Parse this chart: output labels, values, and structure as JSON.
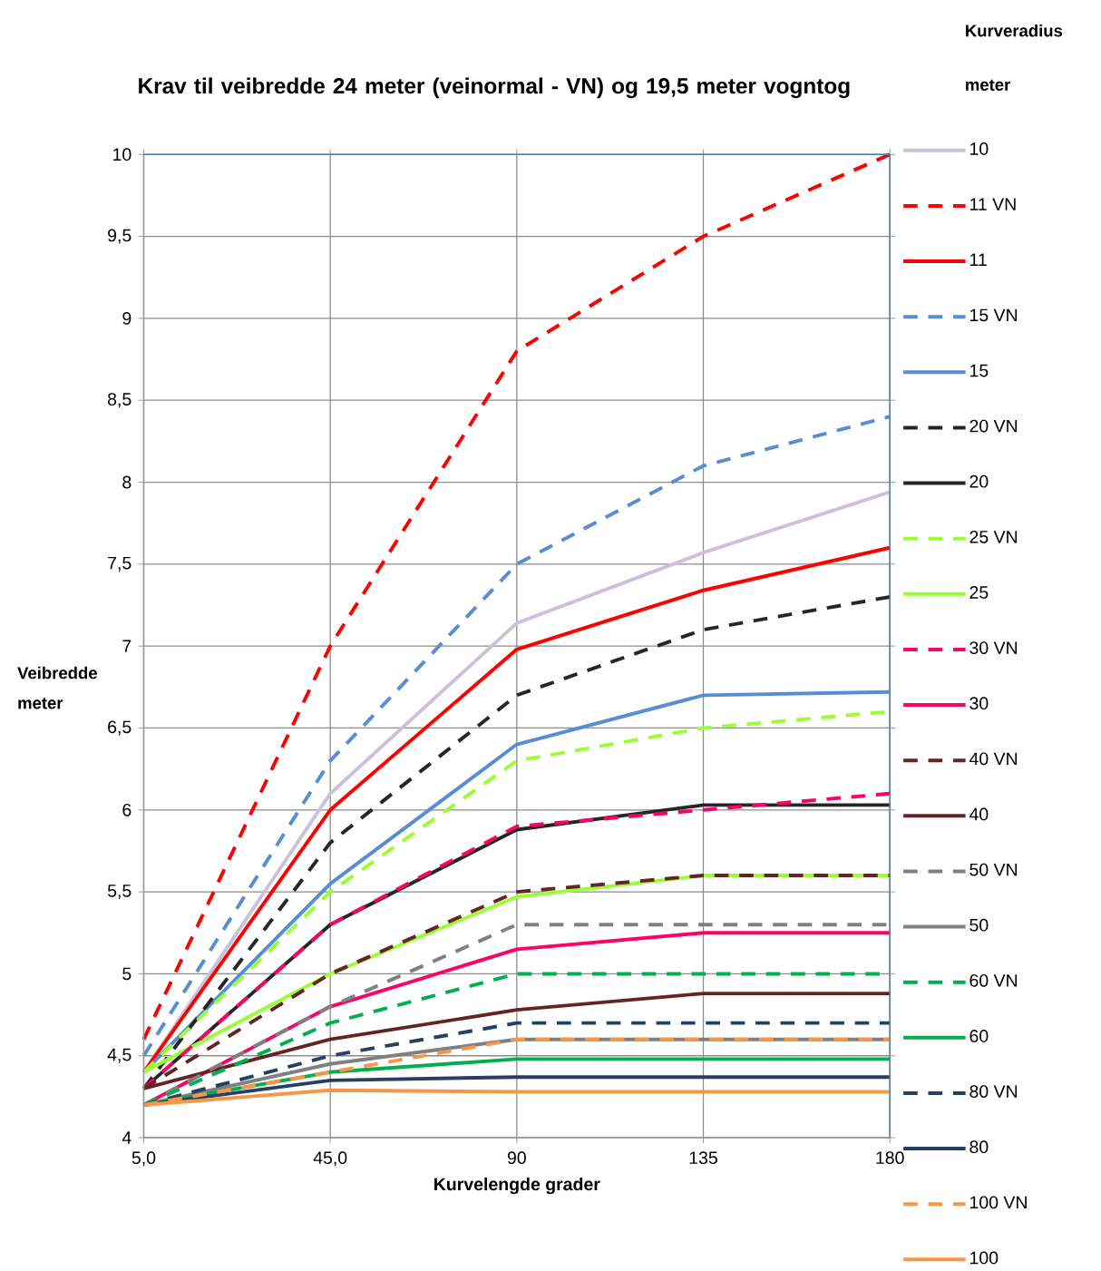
{
  "chart_data": {
    "type": "line",
    "title": "Krav til veibredde 24 meter (veinormal - VN) og 19,5 meter vogntog",
    "xlabel": "Kurvelengde grader",
    "ylabel": "Veibredde meter",
    "legend_title": "Kurveradius meter",
    "categories": [
      "5,0",
      "45,0",
      "90",
      "135",
      "180"
    ],
    "ylim": [
      4,
      10
    ],
    "yticks": [
      4,
      {
        "value": 4.5,
        "label": "4,5"
      },
      5,
      {
        "value": 5.5,
        "label": "5,5"
      },
      6,
      {
        "value": 6.5,
        "label": "6,5"
      },
      7,
      {
        "value": 7.5,
        "label": "7,5"
      },
      8,
      {
        "value": 8.5,
        "label": "8,5"
      },
      9,
      {
        "value": 9.5,
        "label": "9,5"
      },
      10
    ],
    "grid": true,
    "legend": "right",
    "marker": "none",
    "series": [
      {
        "name": "10",
        "color": "#ccc0da",
        "line_style": "solid",
        "values": [
          4.4,
          6.1,
          7.14,
          7.57,
          7.94
        ]
      },
      {
        "name": "11 VN",
        "color": "#ff0000",
        "line_style": "dashed",
        "values": [
          4.6,
          7.0,
          8.8,
          9.5,
          10.0
        ]
      },
      {
        "name": "11",
        "color": "#ff0000",
        "line_style": "solid",
        "values": [
          4.4,
          6.0,
          6.98,
          7.34,
          7.6
        ]
      },
      {
        "name": "15 VN",
        "color": "#558ed5",
        "line_style": "dashed",
        "values": [
          4.5,
          6.3,
          7.5,
          8.1,
          8.4
        ]
      },
      {
        "name": "15",
        "color": "#558ed5",
        "line_style": "solid",
        "values": [
          4.4,
          5.55,
          6.4,
          6.7,
          6.72
        ]
      },
      {
        "name": "20 VN",
        "color": "#262626",
        "line_style": "dashed",
        "values": [
          4.3,
          5.8,
          6.7,
          7.1,
          7.3
        ]
      },
      {
        "name": "20",
        "color": "#262626",
        "line_style": "solid",
        "values": [
          4.3,
          5.3,
          5.88,
          6.03,
          6.03
        ]
      },
      {
        "name": "25 VN",
        "color": "#99ff33",
        "line_style": "dashed",
        "values": [
          4.4,
          5.5,
          6.3,
          6.5,
          6.6
        ]
      },
      {
        "name": "25",
        "color": "#99ff33",
        "line_style": "solid",
        "values": [
          4.4,
          5.0,
          5.47,
          5.6,
          5.6
        ]
      },
      {
        "name": "30 VN",
        "color": "#ff0066",
        "line_style": "dashed",
        "values": [
          4.3,
          5.3,
          5.9,
          6.0,
          6.1
        ]
      },
      {
        "name": "30",
        "color": "#ff0066",
        "line_style": "solid",
        "values": [
          4.2,
          4.8,
          5.15,
          5.25,
          5.25
        ]
      },
      {
        "name": "40 VN",
        "color": "#632523",
        "line_style": "dashed",
        "values": [
          4.3,
          5.0,
          5.5,
          5.6,
          5.6
        ]
      },
      {
        "name": "40",
        "color": "#632523",
        "line_style": "solid",
        "values": [
          4.3,
          4.6,
          4.78,
          4.88,
          4.88
        ]
      },
      {
        "name": "50 VN",
        "color": "#808080",
        "line_style": "dashed",
        "values": [
          4.2,
          4.8,
          5.3,
          5.3,
          5.3
        ]
      },
      {
        "name": "50",
        "color": "#808080",
        "line_style": "solid",
        "values": [
          4.2,
          4.45,
          4.6,
          4.6,
          4.6
        ]
      },
      {
        "name": "60 VN",
        "color": "#00b050",
        "line_style": "dashed",
        "values": [
          4.2,
          4.7,
          5.0,
          5.0,
          5.0
        ]
      },
      {
        "name": "60",
        "color": "#00b050",
        "line_style": "solid",
        "values": [
          4.2,
          4.4,
          4.48,
          4.48,
          4.48
        ]
      },
      {
        "name": "80 VN",
        "color": "#254061",
        "line_style": "dashed",
        "values": [
          4.2,
          4.5,
          4.7,
          4.7,
          4.7
        ]
      },
      {
        "name": "80",
        "color": "#254061",
        "line_style": "solid",
        "values": [
          4.2,
          4.35,
          4.37,
          4.37,
          4.37
        ]
      },
      {
        "name": "100 VN",
        "color": "#f79646",
        "line_style": "dashed",
        "values": [
          4.2,
          4.4,
          4.6,
          4.6,
          4.6
        ]
      },
      {
        "name": "100",
        "color": "#f79646",
        "line_style": "solid",
        "values": [
          4.2,
          4.29,
          4.28,
          4.28,
          4.28
        ]
      }
    ]
  }
}
